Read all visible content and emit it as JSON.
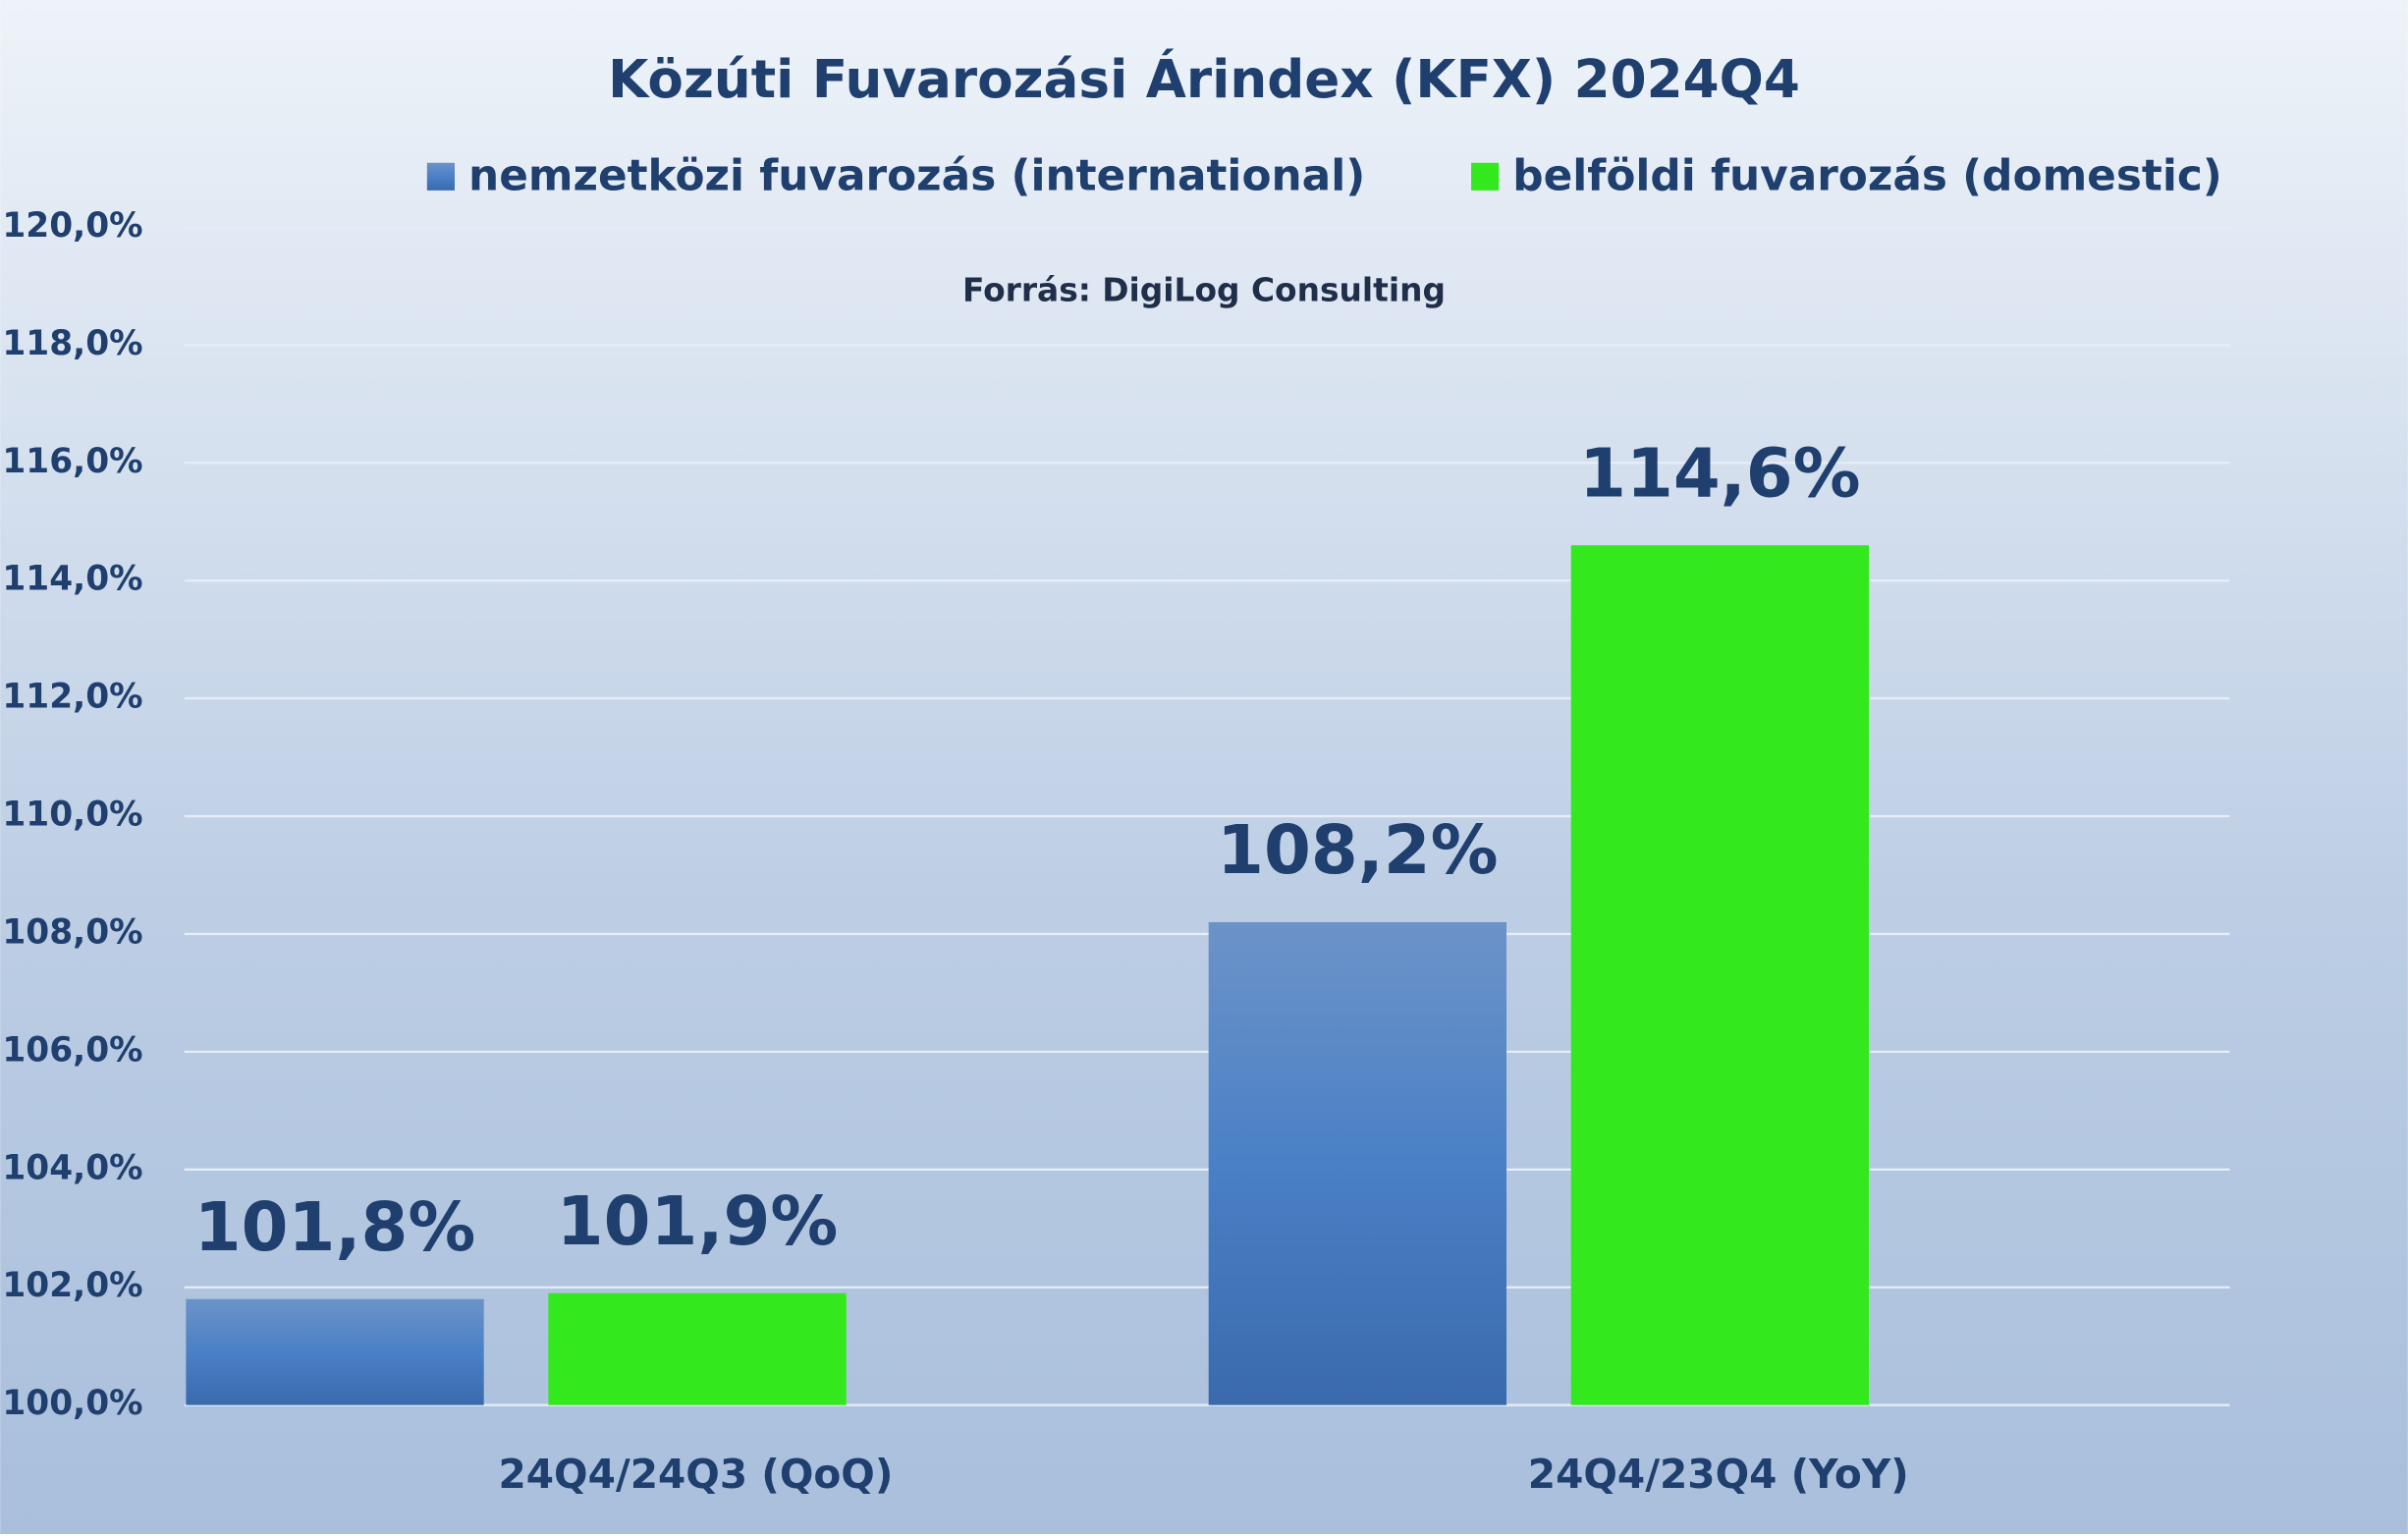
{
  "chart_data": {
    "type": "bar",
    "title": "Közúti Fuvarozási Árindex (KFX) 2024Q4",
    "subtitle": "Forrás: DigiLog Consulting",
    "categories": [
      "24Q4/24Q3 (QoQ)",
      "24Q4/23Q4 (YoY)"
    ],
    "series": [
      {
        "name": "nemzetközi fuvarozás (international)",
        "color": "#4a7cc0",
        "values": [
          101.8,
          108.2
        ],
        "value_labels": [
          "101,8%",
          "108,2%"
        ]
      },
      {
        "name": "belföldi fuvarozás (domestic)",
        "color": "#33e81c",
        "values": [
          101.9,
          114.6
        ],
        "value_labels": [
          "101,9%",
          "114,6%"
        ]
      }
    ],
    "ylim": [
      100,
      120
    ],
    "yticks": [
      {
        "value": 100,
        "label": "100,0%"
      },
      {
        "value": 102,
        "label": "102,0%"
      },
      {
        "value": 104,
        "label": "104,0%"
      },
      {
        "value": 106,
        "label": "106,0%"
      },
      {
        "value": 108,
        "label": "108,0%"
      },
      {
        "value": 110,
        "label": "110,0%"
      },
      {
        "value": 112,
        "label": "112,0%"
      },
      {
        "value": 114,
        "label": "114,0%"
      },
      {
        "value": 116,
        "label": "116,0%"
      },
      {
        "value": 118,
        "label": "118,0%"
      },
      {
        "value": 120,
        "label": "120,0%"
      }
    ],
    "grid": true
  }
}
